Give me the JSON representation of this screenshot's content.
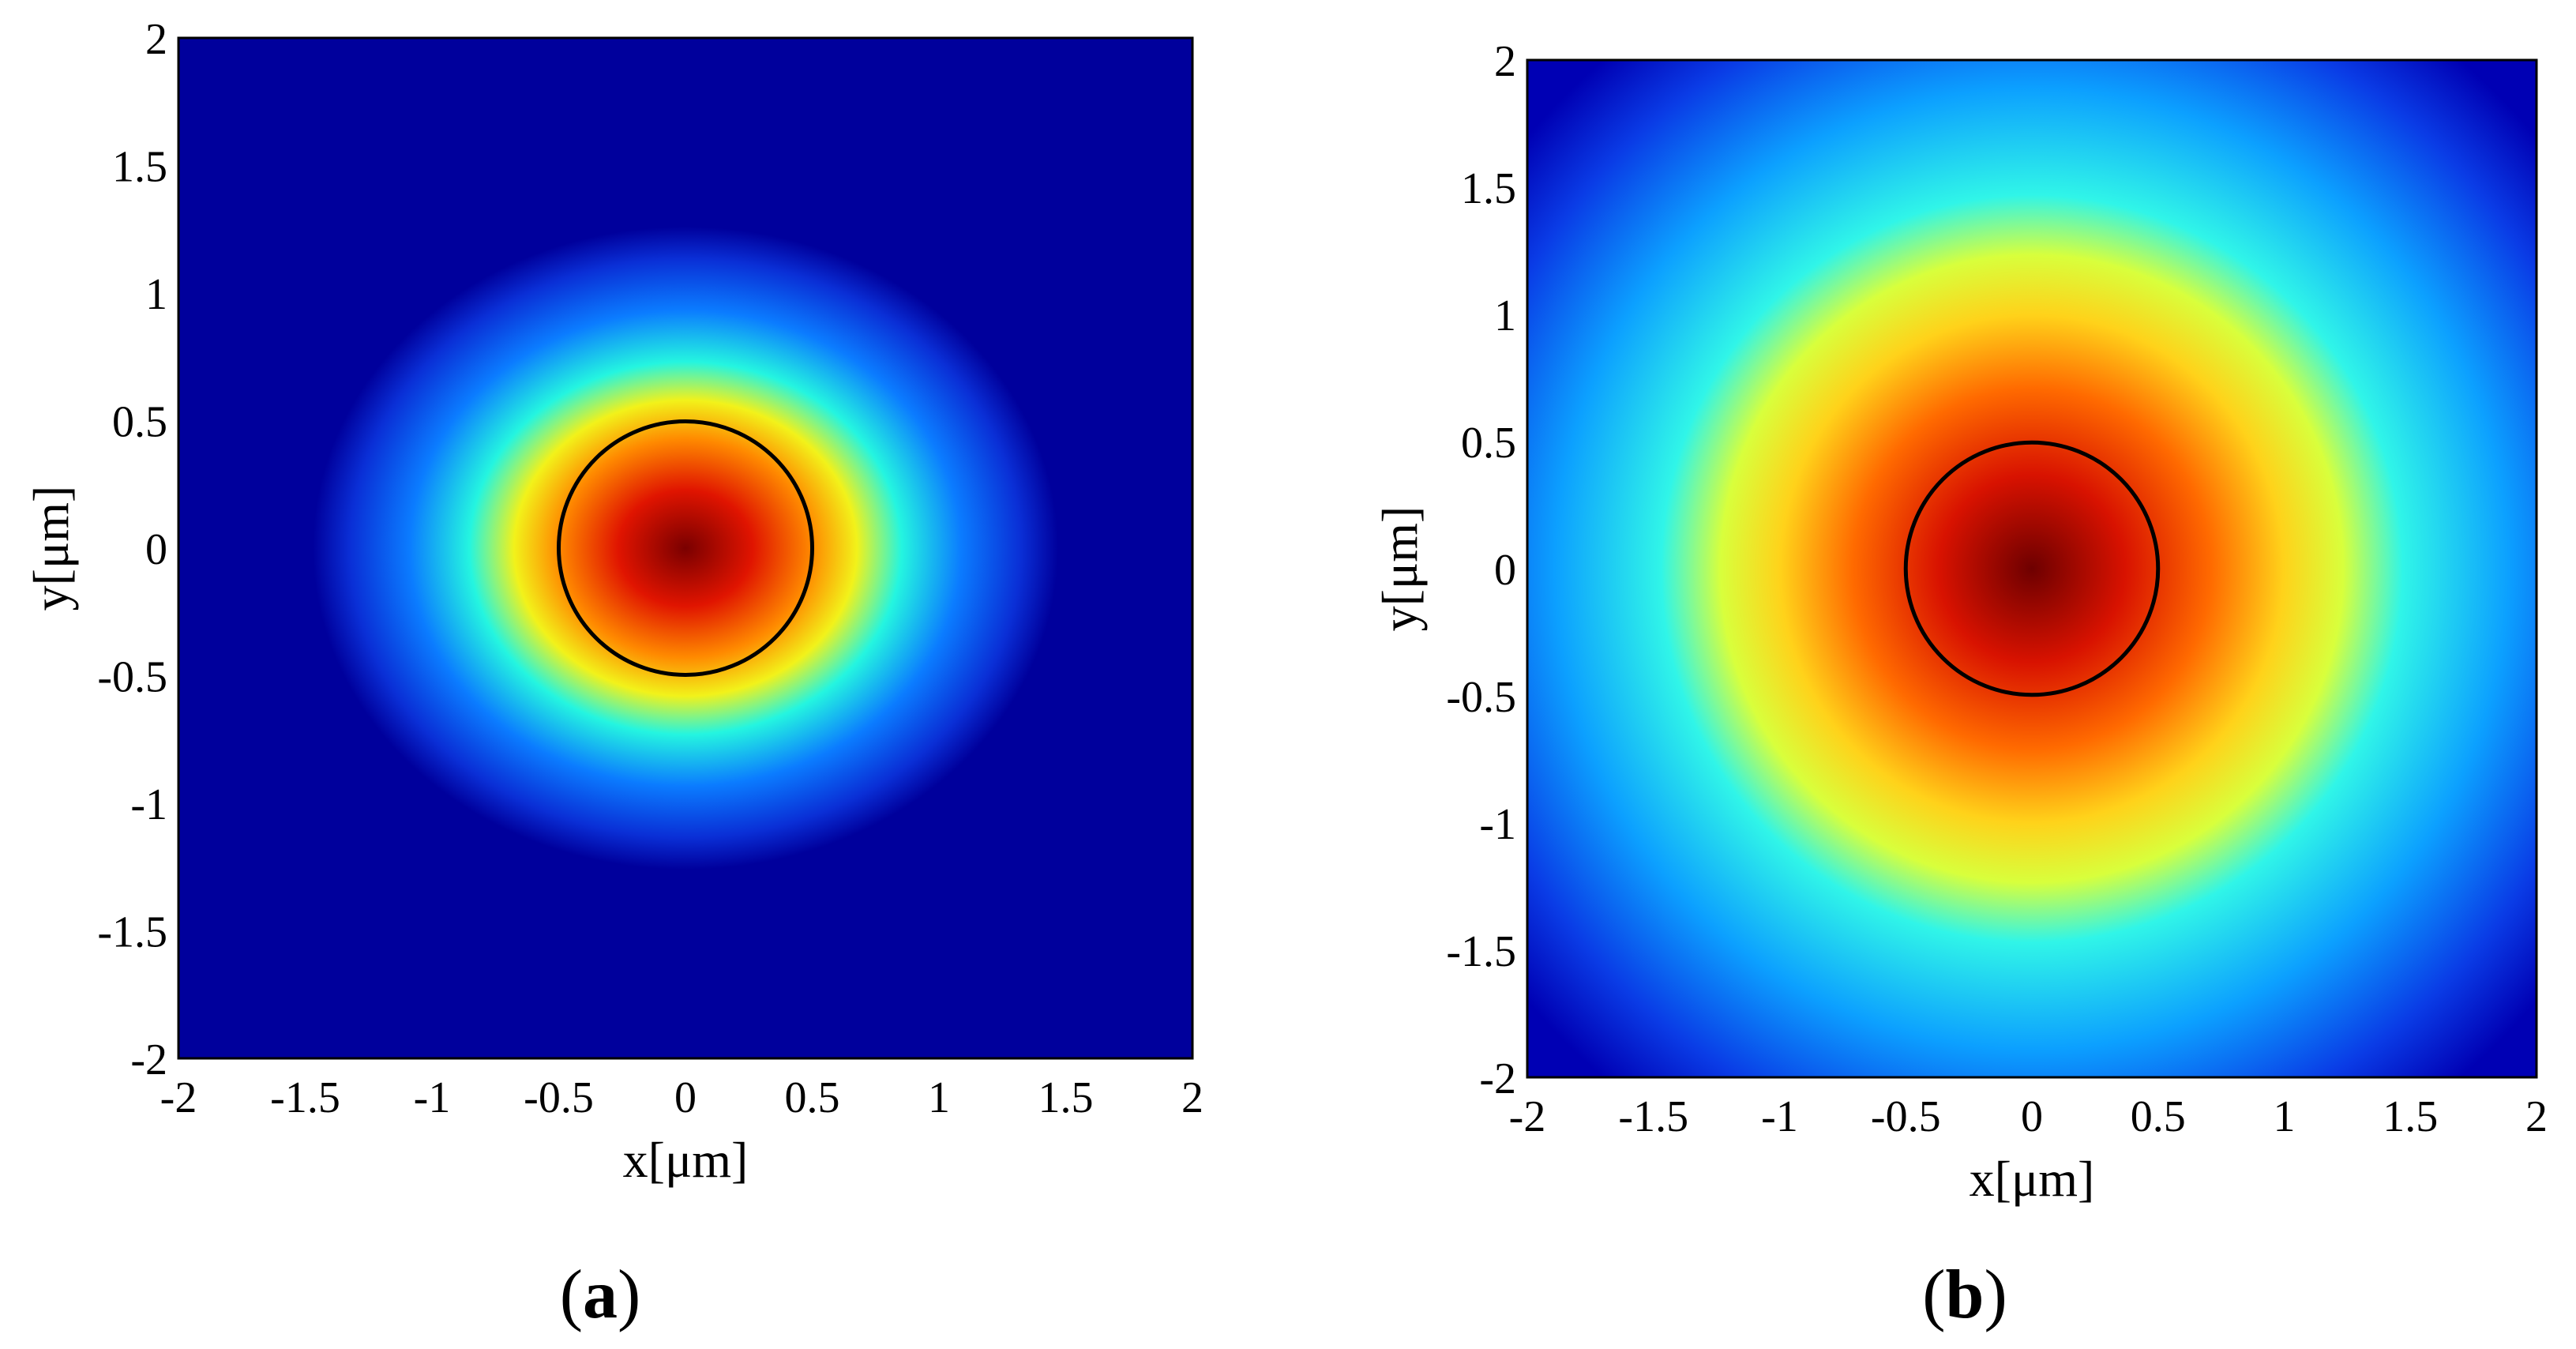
{
  "chart_data": [
    {
      "type": "heatmap",
      "panel_label": "a",
      "xlabel": "x[μm]",
      "ylabel": "y[μm]",
      "xlim": [
        -2,
        2
      ],
      "ylim": [
        -2,
        2
      ],
      "xticks": [
        "-2",
        "-1.5",
        "-1",
        "-0.5",
        "0",
        "0.5",
        "1",
        "1.5",
        "2"
      ],
      "yticks": [
        "2",
        "1.5",
        "1",
        "0.5",
        "0",
        "-0.5",
        "-1",
        "-1.5",
        "-2"
      ],
      "colormap": "jet",
      "field_center": [
        0,
        0
      ],
      "field_extent_x": 0.7,
      "field_extent_y": 0.6,
      "circle": {
        "center": [
          0,
          0
        ],
        "radius": 0.5,
        "color": "#000000"
      }
    },
    {
      "type": "heatmap",
      "panel_label": "b",
      "xlabel": "x[μm]",
      "ylabel": "y[μm]",
      "xlim": [
        -2,
        2
      ],
      "ylim": [
        -2,
        2
      ],
      "xticks": [
        "-2",
        "-1.5",
        "-1",
        "-0.5",
        "0",
        "0.5",
        "1",
        "1.5",
        "2"
      ],
      "yticks": [
        "2",
        "1.5",
        "1",
        "0.5",
        "0",
        "-0.5",
        "-1",
        "-1.5",
        "-2"
      ],
      "colormap": "jet",
      "field_center": [
        0,
        0
      ],
      "field_extent_x": 1.25,
      "field_extent_y": 1.25,
      "circle": {
        "center": [
          0,
          0
        ],
        "radius": 0.5,
        "color": "#000000"
      }
    }
  ]
}
